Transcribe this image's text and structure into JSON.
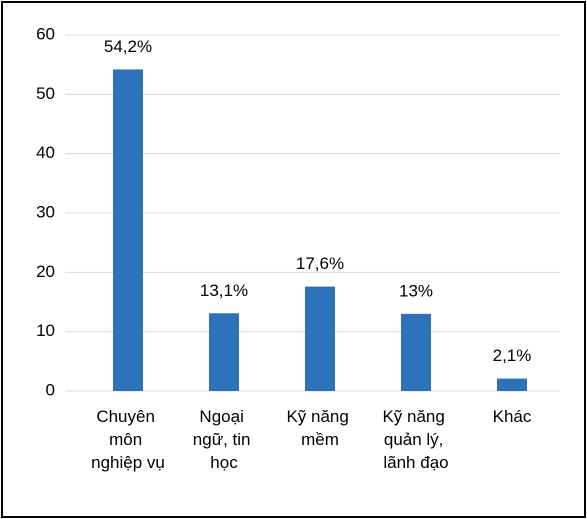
{
  "chart_data": {
    "type": "bar",
    "categories": [
      "Chuyên môn nghiệp vụ",
      "Ngoại ngữ, tin học",
      "Kỹ năng mềm",
      "Kỹ năng quản lý, lãnh đạo",
      "Khác"
    ],
    "values": [
      54.2,
      13.1,
      17.6,
      13,
      2.1
    ],
    "value_labels": [
      "54,2%",
      "13,1%",
      "17,6%",
      "13%",
      "2,1%"
    ],
    "color": "#2f72b9",
    "ylim": [
      0,
      60
    ],
    "yticks": [
      0,
      10,
      20,
      30,
      40,
      50,
      60
    ],
    "grid": true
  }
}
